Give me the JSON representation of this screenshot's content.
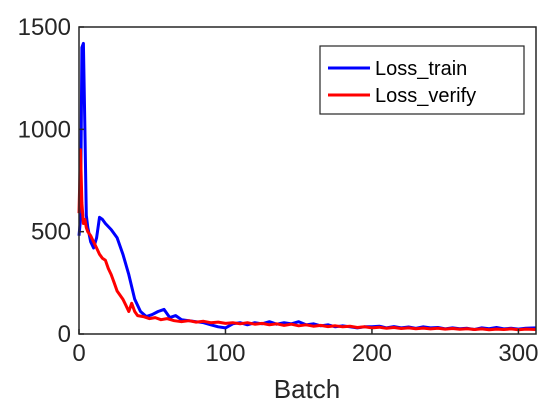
{
  "chart_data": {
    "type": "line",
    "title": "",
    "xlabel": "Batch",
    "ylabel": "",
    "xlim": [
      0,
      312
    ],
    "ylim": [
      0,
      1500
    ],
    "x_ticks": [
      0,
      100,
      200,
      300
    ],
    "y_ticks": [
      0,
      500,
      1000,
      1500
    ],
    "grid": false,
    "legend_position": "top-right",
    "series": [
      {
        "name": "Loss_train",
        "color": "#0000ff",
        "points": [
          [
            0,
            480
          ],
          [
            1,
            560
          ],
          [
            2,
            1400
          ],
          [
            3,
            1420
          ],
          [
            4,
            1000
          ],
          [
            5,
            580
          ],
          [
            6,
            520
          ],
          [
            8,
            450
          ],
          [
            10,
            420
          ],
          [
            12,
            470
          ],
          [
            14,
            570
          ],
          [
            16,
            560
          ],
          [
            18,
            540
          ],
          [
            22,
            510
          ],
          [
            26,
            470
          ],
          [
            30,
            390
          ],
          [
            34,
            290
          ],
          [
            38,
            170
          ],
          [
            42,
            110
          ],
          [
            46,
            85
          ],
          [
            50,
            95
          ],
          [
            54,
            110
          ],
          [
            58,
            120
          ],
          [
            62,
            80
          ],
          [
            66,
            90
          ],
          [
            70,
            70
          ],
          [
            75,
            65
          ],
          [
            80,
            60
          ],
          [
            85,
            55
          ],
          [
            90,
            45
          ],
          [
            95,
            35
          ],
          [
            100,
            30
          ],
          [
            105,
            50
          ],
          [
            110,
            55
          ],
          [
            115,
            45
          ],
          [
            120,
            55
          ],
          [
            125,
            50
          ],
          [
            130,
            60
          ],
          [
            135,
            48
          ],
          [
            140,
            55
          ],
          [
            145,
            50
          ],
          [
            150,
            60
          ],
          [
            155,
            45
          ],
          [
            160,
            50
          ],
          [
            165,
            40
          ],
          [
            170,
            45
          ],
          [
            175,
            35
          ],
          [
            180,
            40
          ],
          [
            185,
            35
          ],
          [
            190,
            30
          ],
          [
            195,
            35
          ],
          [
            200,
            35
          ],
          [
            205,
            38
          ],
          [
            210,
            30
          ],
          [
            215,
            36
          ],
          [
            220,
            30
          ],
          [
            225,
            34
          ],
          [
            230,
            28
          ],
          [
            235,
            35
          ],
          [
            240,
            30
          ],
          [
            245,
            32
          ],
          [
            250,
            25
          ],
          [
            255,
            30
          ],
          [
            260,
            26
          ],
          [
            265,
            28
          ],
          [
            270,
            22
          ],
          [
            275,
            30
          ],
          [
            280,
            26
          ],
          [
            285,
            32
          ],
          [
            290,
            25
          ],
          [
            295,
            28
          ],
          [
            300,
            24
          ],
          [
            305,
            28
          ],
          [
            312,
            30
          ]
        ]
      },
      {
        "name": "Loss_verify",
        "color": "#ff0000",
        "points": [
          [
            0,
            590
          ],
          [
            1,
            900
          ],
          [
            2,
            640
          ],
          [
            3,
            540
          ],
          [
            4,
            560
          ],
          [
            5,
            520
          ],
          [
            6,
            500
          ],
          [
            8,
            480
          ],
          [
            10,
            450
          ],
          [
            12,
            420
          ],
          [
            14,
            390
          ],
          [
            16,
            370
          ],
          [
            18,
            360
          ],
          [
            20,
            320
          ],
          [
            22,
            290
          ],
          [
            24,
            250
          ],
          [
            26,
            210
          ],
          [
            28,
            190
          ],
          [
            30,
            170
          ],
          [
            32,
            140
          ],
          [
            34,
            110
          ],
          [
            36,
            150
          ],
          [
            38,
            110
          ],
          [
            40,
            90
          ],
          [
            44,
            85
          ],
          [
            48,
            75
          ],
          [
            52,
            80
          ],
          [
            56,
            70
          ],
          [
            60,
            75
          ],
          [
            65,
            65
          ],
          [
            70,
            60
          ],
          [
            75,
            65
          ],
          [
            80,
            58
          ],
          [
            85,
            62
          ],
          [
            90,
            55
          ],
          [
            95,
            58
          ],
          [
            100,
            52
          ],
          [
            105,
            55
          ],
          [
            110,
            50
          ],
          [
            115,
            55
          ],
          [
            120,
            48
          ],
          [
            125,
            52
          ],
          [
            130,
            45
          ],
          [
            135,
            50
          ],
          [
            140,
            42
          ],
          [
            145,
            48
          ],
          [
            150,
            40
          ],
          [
            155,
            45
          ],
          [
            160,
            38
          ],
          [
            165,
            42
          ],
          [
            170,
            36
          ],
          [
            175,
            40
          ],
          [
            180,
            35
          ],
          [
            185,
            38
          ],
          [
            190,
            32
          ],
          [
            195,
            35
          ],
          [
            200,
            30
          ],
          [
            205,
            33
          ],
          [
            210,
            28
          ],
          [
            215,
            32
          ],
          [
            220,
            27
          ],
          [
            225,
            30
          ],
          [
            230,
            26
          ],
          [
            235,
            29
          ],
          [
            240,
            25
          ],
          [
            245,
            28
          ],
          [
            250,
            24
          ],
          [
            255,
            27
          ],
          [
            260,
            23
          ],
          [
            265,
            26
          ],
          [
            270,
            22
          ],
          [
            275,
            25
          ],
          [
            280,
            21
          ],
          [
            285,
            24
          ],
          [
            290,
            22
          ],
          [
            295,
            25
          ],
          [
            300,
            21
          ],
          [
            305,
            24
          ],
          [
            312,
            22
          ]
        ]
      }
    ]
  }
}
